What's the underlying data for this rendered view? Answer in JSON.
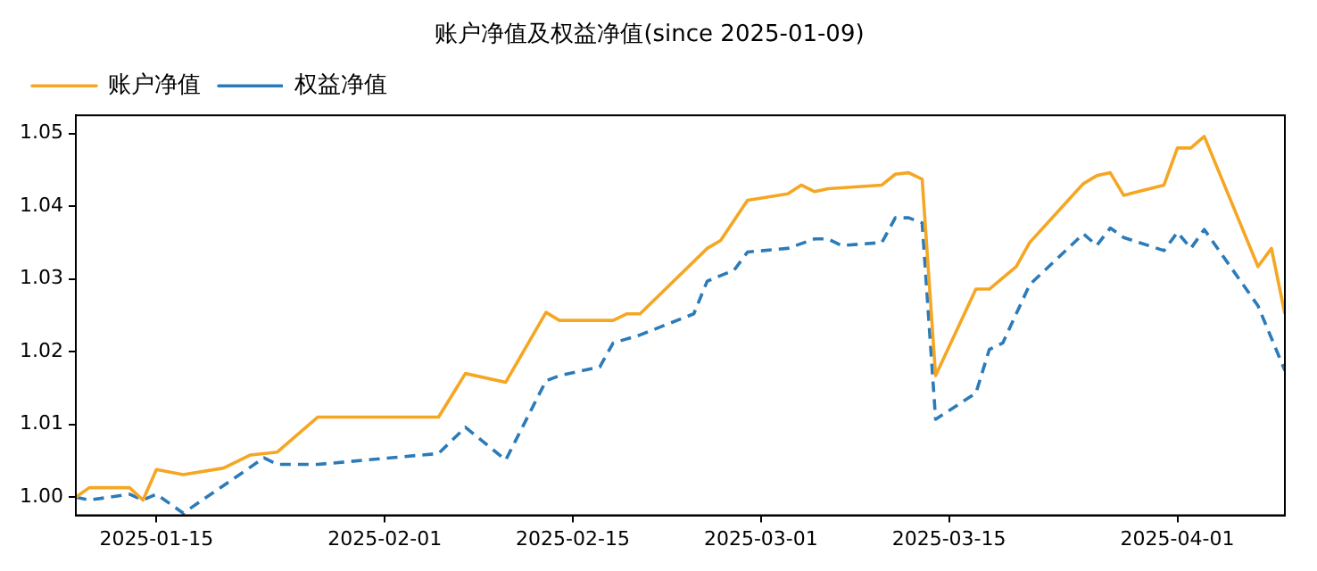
{
  "chart_data": {
    "type": "line",
    "title": "账户净值及权益净值(since 2025-01-09)",
    "xlim": [
      "2025-01-09",
      "2025-04-09"
    ],
    "xticks": [
      "2025-01-15",
      "2025-02-01",
      "2025-02-15",
      "2025-03-01",
      "2025-03-15",
      "2025-04-01"
    ],
    "ylim": [
      0.9975,
      1.0525
    ],
    "yticks": [
      {
        "value": 1,
        "label": "1.00"
      },
      {
        "value": 1.01,
        "label": "1.01"
      },
      {
        "value": 1.02,
        "label": "1.02"
      },
      {
        "value": 1.03,
        "label": "1.03"
      },
      {
        "value": 1.04,
        "label": "1.04"
      },
      {
        "value": 1.05,
        "label": "1.05"
      }
    ],
    "grid": false,
    "legend": "top left",
    "marker": "none",
    "series": [
      {
        "name": "账户净值",
        "color": "#f5a623",
        "line_style": "solid",
        "x": [
          "2025-01-09",
          "2025-01-10",
          "2025-01-13",
          "2025-01-14",
          "2025-01-15",
          "2025-01-17",
          "2025-01-20",
          "2025-01-22",
          "2025-01-24",
          "2025-01-27",
          "2025-02-05",
          "2025-02-07",
          "2025-02-10",
          "2025-02-13",
          "2025-02-14",
          "2025-02-18",
          "2025-02-19",
          "2025-02-20",
          "2025-02-25",
          "2025-02-26",
          "2025-02-28",
          "2025-03-03",
          "2025-03-04",
          "2025-03-05",
          "2025-03-06",
          "2025-03-10",
          "2025-03-11",
          "2025-03-12",
          "2025-03-13",
          "2025-03-14",
          "2025-03-17",
          "2025-03-18",
          "2025-03-20",
          "2025-03-21",
          "2025-03-25",
          "2025-03-26",
          "2025-03-27",
          "2025-03-28",
          "2025-03-31",
          "2025-04-01",
          "2025-04-02",
          "2025-04-03",
          "2025-04-07",
          "2025-04-08",
          "2025-04-09"
        ],
        "values": [
          1.0,
          1.0013,
          1.0013,
          0.9996,
          1.0038,
          1.0031,
          1.004,
          1.0058,
          1.0062,
          1.011,
          1.011,
          1.017,
          1.0158,
          1.0254,
          1.0243,
          1.0243,
          1.0252,
          1.0252,
          1.0342,
          1.0353,
          1.0408,
          1.0417,
          1.0429,
          1.042,
          1.0424,
          1.0429,
          1.0444,
          1.0446,
          1.0437,
          1.0167,
          1.0286,
          1.0286,
          1.0317,
          1.035,
          1.0431,
          1.0442,
          1.0446,
          1.0415,
          1.0429,
          1.048,
          1.048,
          1.0496,
          1.0317,
          1.0342,
          1.0252
        ]
      },
      {
        "name": "权益净值",
        "color": "#2b7bb9",
        "line_style": "dashed",
        "x": [
          "2025-01-09",
          "2025-01-10",
          "2025-01-13",
          "2025-01-14",
          "2025-01-15",
          "2025-01-17",
          "2025-01-23",
          "2025-01-24",
          "2025-01-27",
          "2025-02-05",
          "2025-02-07",
          "2025-02-10",
          "2025-02-13",
          "2025-02-14",
          "2025-02-17",
          "2025-02-18",
          "2025-02-20",
          "2025-02-24",
          "2025-02-25",
          "2025-02-27",
          "2025-02-28",
          "2025-03-03",
          "2025-03-05",
          "2025-03-06",
          "2025-03-07",
          "2025-03-10",
          "2025-03-11",
          "2025-03-12",
          "2025-03-13",
          "2025-03-14",
          "2025-03-17",
          "2025-03-18",
          "2025-03-19",
          "2025-03-21",
          "2025-03-25",
          "2025-03-26",
          "2025-03-27",
          "2025-03-28",
          "2025-03-31",
          "2025-04-01",
          "2025-04-02",
          "2025-04-03",
          "2025-04-07",
          "2025-04-09"
        ],
        "values": [
          1.0,
          0.9996,
          1.0004,
          0.9996,
          1.0004,
          0.9978,
          1.0054,
          1.0045,
          1.0045,
          1.006,
          1.0096,
          1.0051,
          1.016,
          1.0167,
          1.0179,
          1.0212,
          1.0223,
          1.0252,
          1.0297,
          1.0312,
          1.0337,
          1.0342,
          1.0355,
          1.0355,
          1.0346,
          1.035,
          1.0384,
          1.0384,
          1.0377,
          1.0107,
          1.0143,
          1.0203,
          1.0212,
          1.0292,
          1.0362,
          1.0346,
          1.037,
          1.0357,
          1.0339,
          1.0364,
          1.0342,
          1.0368,
          1.0263,
          1.0174
        ]
      }
    ]
  }
}
